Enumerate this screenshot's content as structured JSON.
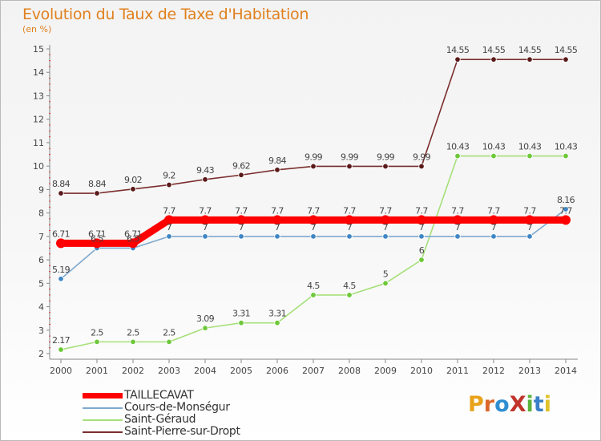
{
  "chart_data": {
    "type": "line",
    "title": "Evolution du Taux de Taxe d'Habitation",
    "subtitle": "(en %)",
    "x": [
      2000,
      2001,
      2002,
      2003,
      2004,
      2005,
      2006,
      2007,
      2008,
      2009,
      2010,
      2011,
      2012,
      2013,
      2014
    ],
    "ylim": [
      2,
      15
    ],
    "yticks": [
      2,
      3,
      4,
      5,
      6,
      7,
      8,
      9,
      10,
      11,
      12,
      13,
      14,
      15
    ],
    "grid": false,
    "legend_position": "bottom-left",
    "series": [
      {
        "name": "Saint-Pierre-sur-Dropt",
        "color": "#7b2e2e",
        "marker_color": "#5a1a1a",
        "values": [
          8.84,
          8.84,
          9.02,
          9.2,
          9.43,
          9.62,
          9.84,
          9.99,
          9.99,
          9.99,
          9.99,
          14.55,
          14.55,
          14.55,
          14.55
        ],
        "labels": [
          "8.84",
          "8.84",
          "9.02",
          "9.2",
          "9.43",
          "9.62",
          "9.84",
          "9.99",
          "9.99",
          "9.99",
          "9.99",
          "14.55",
          "14.55",
          "14.55",
          "14.55"
        ]
      },
      {
        "name": "Saint-Géraud",
        "color": "#a6e07a",
        "marker_color": "#6ec83a",
        "values": [
          2.17,
          2.5,
          2.5,
          2.5,
          3.09,
          3.31,
          3.31,
          4.5,
          4.5,
          5,
          6,
          10.43,
          10.43,
          10.43,
          10.43
        ],
        "labels": [
          "2.17",
          "2.5",
          "2.5",
          "2.5",
          "3.09",
          "3.31",
          "3.31",
          "4.5",
          "4.5",
          "5",
          "6",
          "10.43",
          "10.43",
          "10.43",
          "10.43"
        ]
      },
      {
        "name": "Cours-de-Monségur",
        "color": "#7fa9cf",
        "marker_color": "#3f86c4",
        "values": [
          5.19,
          6.5,
          6.5,
          7,
          7,
          7,
          7,
          7,
          7,
          7,
          7,
          7,
          7,
          7,
          8.16
        ],
        "labels": [
          "5.19",
          "6.5",
          "6.5",
          "7",
          "7",
          "7",
          "7",
          "7",
          "7",
          "7",
          "7",
          "7",
          "7",
          "7",
          "8.16"
        ]
      },
      {
        "name": "TAILLECAVAT",
        "color": "#ff0000",
        "marker_color": "#ff0000",
        "values": [
          6.71,
          6.71,
          6.71,
          7.7,
          7.7,
          7.7,
          7.7,
          7.7,
          7.7,
          7.7,
          7.7,
          7.7,
          7.7,
          7.7,
          7.7
        ],
        "labels": [
          "6.71",
          "6.71",
          "6.71",
          "7.7",
          "7.7",
          "7.7",
          "7.7",
          "7.7",
          "7.7",
          "7.7",
          "7.7",
          "7.7",
          "7.7",
          "7.7",
          "7.7"
        ]
      }
    ]
  },
  "legend": {
    "items": [
      {
        "name": "TAILLECAVAT",
        "color": "#ff0000"
      },
      {
        "name": "Cours-de-Monségur",
        "color": "#7fa9cf"
      },
      {
        "name": "Saint-Géraud",
        "color": "#a6e07a"
      },
      {
        "name": "Saint-Pierre-sur-Dropt",
        "color": "#7b2e2e"
      }
    ]
  },
  "logo": {
    "text": "ProXiti",
    "letter_colors": [
      "#e8a21a",
      "#d9682a",
      "#2f8fd1",
      "#c0342b",
      "#5bb33c",
      "#3a7fc7",
      "#e0c22a"
    ]
  }
}
